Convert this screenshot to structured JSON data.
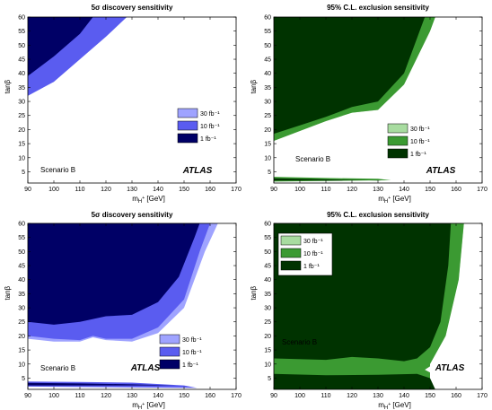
{
  "chart_data": [
    {
      "type": "area",
      "title": "5σ discovery sensitivity",
      "xlabel": "m_H+ [GeV]",
      "ylabel": "tanβ",
      "xlim": [
        90,
        170
      ],
      "ylim": [
        1,
        60
      ],
      "xticks": [
        90,
        100,
        110,
        120,
        130,
        140,
        150,
        160,
        170
      ],
      "yticks": [
        5,
        10,
        15,
        20,
        25,
        30,
        35,
        40,
        45,
        50,
        55,
        60
      ],
      "legend_position": "right-middle",
      "annotations": [
        "Scenario B",
        "ATLAS"
      ],
      "series": [
        {
          "name": "30 fb⁻¹",
          "color": "#9fa3ff",
          "boundary": [
            [
              90,
              32
            ],
            [
              100,
              37
            ],
            [
              110,
              45
            ],
            [
              120,
              53
            ],
            [
              128,
              60
            ]
          ]
        },
        {
          "name": "10 fb⁻¹",
          "color": "#5a5cf0",
          "boundary": [
            [
              90,
              32
            ],
            [
              100,
              37
            ],
            [
              110,
              45
            ],
            [
              120,
              53
            ],
            [
              128,
              60
            ]
          ]
        },
        {
          "name": "1 fb⁻¹",
          "color": "#000066",
          "boundary": [
            [
              90,
              39
            ],
            [
              100,
              46
            ],
            [
              110,
              54
            ],
            [
              115,
              60
            ]
          ]
        }
      ]
    },
    {
      "type": "area",
      "title": "95% C.L. exclusion sensitivity",
      "xlabel": "m_H+ [GeV]",
      "ylabel": "tanβ",
      "xlim": [
        90,
        170
      ],
      "ylim": [
        1,
        60
      ],
      "xticks": [
        90,
        100,
        110,
        120,
        130,
        140,
        150,
        160,
        170
      ],
      "yticks": [
        5,
        10,
        15,
        20,
        25,
        30,
        35,
        40,
        45,
        50,
        55,
        60
      ],
      "legend_position": "right-bottom",
      "annotations": [
        "Scenario B",
        "ATLAS"
      ],
      "series": [
        {
          "name": "30 fb⁻¹",
          "color": "#a8dca0",
          "boundary": [
            [
              90,
              16
            ],
            [
              100,
              19.5
            ],
            [
              110,
              23
            ],
            [
              120,
              26
            ],
            [
              130,
              27
            ],
            [
              140,
              36
            ],
            [
              150,
              55
            ],
            [
              152,
              60
            ]
          ]
        },
        {
          "name": "10 fb⁻¹",
          "color": "#3b9a32",
          "boundary": [
            [
              90,
              16
            ],
            [
              100,
              19.5
            ],
            [
              110,
              23
            ],
            [
              120,
              26
            ],
            [
              130,
              27
            ],
            [
              140,
              36
            ],
            [
              150,
              55
            ],
            [
              152,
              60
            ]
          ]
        },
        {
          "name": "1 fb⁻¹",
          "color": "#003300",
          "boundary": [
            [
              90,
              18.5
            ],
            [
              100,
              21.5
            ],
            [
              110,
              24.5
            ],
            [
              120,
              28
            ],
            [
              130,
              30
            ],
            [
              140,
              40
            ],
            [
              148,
              60
            ]
          ],
          "low_band": [
            [
              90,
              1.5
            ],
            [
              90,
              3.2
            ],
            [
              110,
              2.8
            ],
            [
              130,
              2.5
            ],
            [
              135,
              2.0
            ]
          ]
        }
      ]
    },
    {
      "type": "area",
      "title": "5σ discovery sensitivity",
      "xlabel": "m_H+ [GeV]",
      "ylabel": "tanβ",
      "xlim": [
        90,
        170
      ],
      "ylim": [
        1,
        60
      ],
      "xticks": [
        90,
        100,
        110,
        120,
        130,
        140,
        150,
        160,
        170
      ],
      "yticks": [
        5,
        10,
        15,
        20,
        25,
        30,
        35,
        40,
        45,
        50,
        55,
        60
      ],
      "legend_position": "right-bottom",
      "annotations": [
        "Scenario B",
        "ATLAS"
      ],
      "series": [
        {
          "name": "30 fb⁻¹",
          "color": "#9fa3ff",
          "boundary": [
            [
              90,
              19
            ],
            [
              100,
              18
            ],
            [
              110,
              18
            ],
            [
              115,
              19.5
            ],
            [
              120,
              18.5
            ],
            [
              130,
              18
            ],
            [
              140,
              21
            ],
            [
              150,
              30
            ],
            [
              158,
              50
            ],
            [
              163,
              60
            ]
          ]
        },
        {
          "name": "10 fb⁻¹",
          "color": "#5a5cf0",
          "boundary": [
            [
              90,
              20
            ],
            [
              100,
              19
            ],
            [
              110,
              18.5
            ],
            [
              115,
              20
            ],
            [
              120,
              19
            ],
            [
              130,
              19
            ],
            [
              140,
              23
            ],
            [
              150,
              33
            ],
            [
              156,
              50
            ],
            [
              160,
              60
            ]
          ]
        },
        {
          "name": "1 fb⁻¹",
          "color": "#000066",
          "boundary": [
            [
              90,
              25
            ],
            [
              100,
              24
            ],
            [
              110,
              25
            ],
            [
              120,
              27
            ],
            [
              130,
              27.5
            ],
            [
              140,
              32
            ],
            [
              148,
              41
            ],
            [
              154,
              55
            ],
            [
              156,
              60
            ]
          ],
          "low_band": [
            [
              90,
              2.0
            ],
            [
              90,
              3.8
            ],
            [
              110,
              3.6
            ],
            [
              130,
              3.4
            ],
            [
              150,
              2.4
            ],
            [
              155,
              1.5
            ]
          ]
        }
      ]
    },
    {
      "type": "area",
      "title": "95% C.L. exclusion sensitivity",
      "xlabel": "m_H+ [GeV]",
      "ylabel": "tanβ",
      "xlim": [
        90,
        170
      ],
      "ylim": [
        1,
        60
      ],
      "xticks": [
        90,
        100,
        110,
        120,
        130,
        140,
        150,
        160,
        170
      ],
      "yticks": [
        5,
        10,
        15,
        20,
        25,
        30,
        35,
        40,
        45,
        50,
        55,
        60
      ],
      "legend_position": "top-left",
      "annotations": [
        "Scenario B",
        "ATLAS"
      ],
      "series": [
        {
          "name": "30 fb⁻¹",
          "color": "#a8dca0",
          "boundary": [
            [
              150,
              10
            ],
            [
              156,
              20
            ],
            [
              161,
              40
            ],
            [
              163,
              60
            ]
          ]
        },
        {
          "name": "10 fb⁻¹",
          "color": "#3b9a32",
          "boundary": [
            [
              150,
              10
            ],
            [
              156,
              20
            ],
            [
              161,
              40
            ],
            [
              163,
              60
            ]
          ]
        },
        {
          "name": "1 fb⁻¹",
          "color": "#003300",
          "boundary": [
            [
              145,
              12
            ],
            [
              150,
              16
            ],
            [
              154,
              25
            ],
            [
              157,
              45
            ],
            [
              158,
              60
            ]
          ]
        }
      ]
    }
  ]
}
